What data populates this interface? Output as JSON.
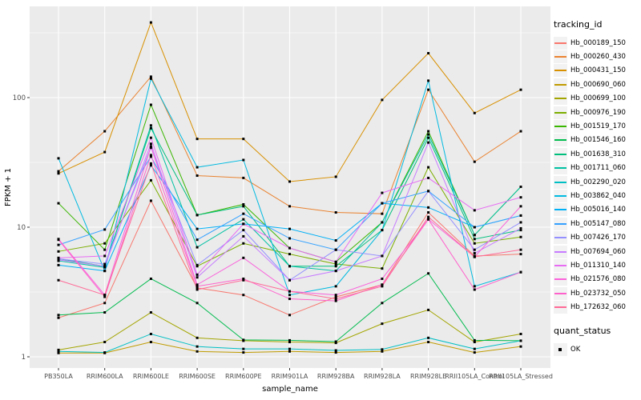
{
  "chart_data": {
    "type": "line",
    "title": "",
    "xlabel": "sample_name",
    "ylabel": "FPKM + 1",
    "y_scale": "log10",
    "ylim": [
      0.82,
      505
    ],
    "y_ticks": [
      1,
      10,
      100
    ],
    "y_tick_labels": [
      "1",
      "10",
      "100"
    ],
    "y_minor_gridlines": [
      3.162,
      31.62,
      316.2
    ],
    "grid": true,
    "legend_position": "right",
    "legend_titles": {
      "series": "tracking_id",
      "shape": "quant_status"
    },
    "quant_status": {
      "label": "OK",
      "marker": "black-square"
    },
    "marker": "black-square",
    "categories": [
      "PB350LA",
      "RRIM600LA",
      "RRIM600LE",
      "RRIM600SE",
      "RRIM600PE",
      "RRIM901LA",
      "RRIM928BA",
      "RRIM928LA",
      "RRIM928LE",
      "RRII105LA_Control",
      "RRII105LA_Stressed"
    ],
    "series": [
      {
        "name": "Hb_000189_150",
        "color": "#F8766D",
        "values": [
          2.0,
          2.6,
          16,
          3.4,
          3.0,
          2.1,
          2.9,
          3.6,
          13,
          6.0,
          6.2
        ]
      },
      {
        "name": "Hb_000260_430",
        "color": "#EA8331",
        "values": [
          27,
          55,
          145,
          25,
          24,
          14.5,
          13,
          12.7,
          115,
          32,
          55
        ]
      },
      {
        "name": "Hb_000431_150",
        "color": "#D89000",
        "values": [
          26,
          38,
          380,
          48,
          48,
          22.5,
          24.5,
          96,
          220,
          76,
          115
        ]
      },
      {
        "name": "Hb_000690_060",
        "color": "#C09B00",
        "values": [
          1.07,
          1.07,
          1.3,
          1.1,
          1.08,
          1.1,
          1.08,
          1.1,
          1.3,
          1.08,
          1.2
        ]
      },
      {
        "name": "Hb_000699_100",
        "color": "#A3A500",
        "values": [
          1.13,
          1.3,
          2.2,
          1.4,
          1.33,
          1.3,
          1.28,
          1.8,
          2.3,
          1.3,
          1.5
        ]
      },
      {
        "name": "Hb_000976_190",
        "color": "#7CAE00",
        "values": [
          6.5,
          7.5,
          23,
          5.0,
          7.5,
          6.2,
          5.2,
          4.8,
          29,
          7.5,
          8.4
        ]
      },
      {
        "name": "Hb_001519_170",
        "color": "#39B600",
        "values": [
          15.3,
          6.7,
          88,
          12.4,
          15,
          6.9,
          5.4,
          10.9,
          55,
          8.7,
          20.5
        ]
      },
      {
        "name": "Hb_001546_160",
        "color": "#00BB4E",
        "values": [
          2.1,
          2.2,
          4.0,
          2.6,
          1.35,
          1.34,
          1.31,
          2.6,
          4.4,
          1.34,
          1.33
        ]
      },
      {
        "name": "Hb_001638_310",
        "color": "#00BF7D",
        "values": [
          5.7,
          5.0,
          58,
          12.4,
          14.5,
          5.0,
          5.0,
          9.5,
          49,
          8.1,
          9.5
        ]
      },
      {
        "name": "Hb_001711_060",
        "color": "#00C1A3",
        "values": [
          5.5,
          4.9,
          61,
          7.0,
          11.5,
          5.0,
          4.6,
          10.9,
          52,
          8.7,
          20.5
        ]
      },
      {
        "name": "Hb_002290_020",
        "color": "#00BFC4",
        "values": [
          1.1,
          1.08,
          1.5,
          1.2,
          1.15,
          1.15,
          1.12,
          1.14,
          1.4,
          1.15,
          1.33
        ]
      },
      {
        "name": "Hb_003862_040",
        "color": "#00BAE0",
        "values": [
          34,
          4.6,
          140,
          29,
          33,
          3.0,
          3.5,
          9.5,
          135,
          3.5,
          4.5
        ]
      },
      {
        "name": "Hb_005016_140",
        "color": "#00B0F6",
        "values": [
          5.1,
          4.6,
          30,
          9.7,
          10.6,
          9.7,
          7.9,
          15.3,
          14.2,
          10,
          12.3
        ]
      },
      {
        "name": "Hb_005147_080",
        "color": "#35A2FF",
        "values": [
          7.3,
          9.6,
          35,
          8.0,
          12.7,
          8.2,
          6.7,
          15.3,
          19,
          10,
          12.3
        ]
      },
      {
        "name": "Hb_007426_170",
        "color": "#9590FF",
        "values": [
          5.7,
          5.2,
          41,
          5.1,
          9.5,
          3.9,
          6.7,
          6.0,
          19,
          6.7,
          10.9
        ]
      },
      {
        "name": "Hb_007694_060",
        "color": "#C77CFF",
        "values": [
          5.6,
          5.0,
          44,
          4.1,
          8.5,
          3.9,
          4.6,
          6.0,
          45,
          6.3,
          9.8
        ]
      },
      {
        "name": "Hb_011310_140",
        "color": "#E76BF3",
        "values": [
          5.8,
          6.0,
          49,
          4.3,
          10.6,
          6.9,
          5.4,
          18.4,
          24,
          13.5,
          17
        ]
      },
      {
        "name": "Hb_021576_080",
        "color": "#FA62DB",
        "values": [
          8.1,
          3.0,
          42,
          3.6,
          5.8,
          3.2,
          3.0,
          4.0,
          11.5,
          5.9,
          14.5
        ]
      },
      {
        "name": "Hb_023732_050",
        "color": "#FF61CC",
        "values": [
          8.0,
          2.9,
          36,
          3.5,
          4.0,
          2.8,
          2.7,
          3.6,
          11.5,
          3.3,
          4.5
        ]
      },
      {
        "name": "Hb_172632_060",
        "color": "#FF6A98",
        "values": [
          3.9,
          3.0,
          31,
          3.3,
          3.9,
          3.2,
          2.8,
          3.5,
          12,
          5.9,
          6.7
        ]
      }
    ],
    "style": {
      "panel_bg": "#EBEBEB",
      "gridline": "#FFFFFF",
      "tick_text": "#4D4D4D",
      "title_text": "#000000",
      "point": "#000000",
      "legend_key_bg": "#F2F2F2"
    }
  }
}
